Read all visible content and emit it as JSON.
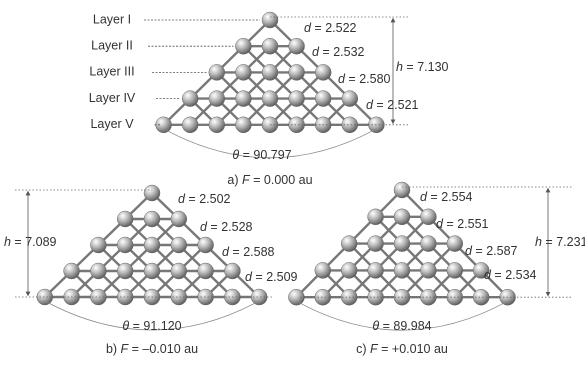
{
  "panels": [
    {
      "layers": [
        "Layer I",
        "Layer II",
        "Layer III",
        "Layer IV",
        "Layer V"
      ],
      "distances": [
        {
          "symbol": "d",
          "text": " = 2.522"
        },
        {
          "symbol": "d",
          "text": " = 2.532"
        },
        {
          "symbol": "d",
          "text": " = 2.580"
        },
        {
          "symbol": "d",
          "text": " = 2.521"
        }
      ],
      "height": {
        "symbol": "h",
        "text": " = 7.130"
      },
      "angle": {
        "symbol": "θ",
        "text": " = 90.797"
      },
      "caption": {
        "prefix": "a) ",
        "symbol": "F",
        "text": " = 0.000 au"
      }
    },
    {
      "distances": [
        {
          "symbol": "d",
          "text": " = 2.502"
        },
        {
          "symbol": "d",
          "text": " = 2.528"
        },
        {
          "symbol": "d",
          "text": " = 2.588"
        },
        {
          "symbol": "d",
          "text": " = 2.509"
        }
      ],
      "height": {
        "symbol": "h",
        "text": " = 7.089"
      },
      "angle": {
        "symbol": "θ",
        "text": " = 91.120"
      },
      "caption": {
        "prefix": "b) ",
        "symbol": "F",
        "text": " = –0.010 au"
      }
    },
    {
      "distances": [
        {
          "symbol": "d",
          "text": " = 2.554"
        },
        {
          "symbol": "d",
          "text": " = 2.551"
        },
        {
          "symbol": "d",
          "text": " = 2.587"
        },
        {
          "symbol": "d",
          "text": " = 2.534"
        }
      ],
      "height": {
        "symbol": "h",
        "text": " = 7.231"
      },
      "angle": {
        "symbol": "θ",
        "text": " = 89.984"
      },
      "caption": {
        "prefix": "c) ",
        "symbol": "F",
        "text": " = +0.010 au"
      }
    }
  ]
}
